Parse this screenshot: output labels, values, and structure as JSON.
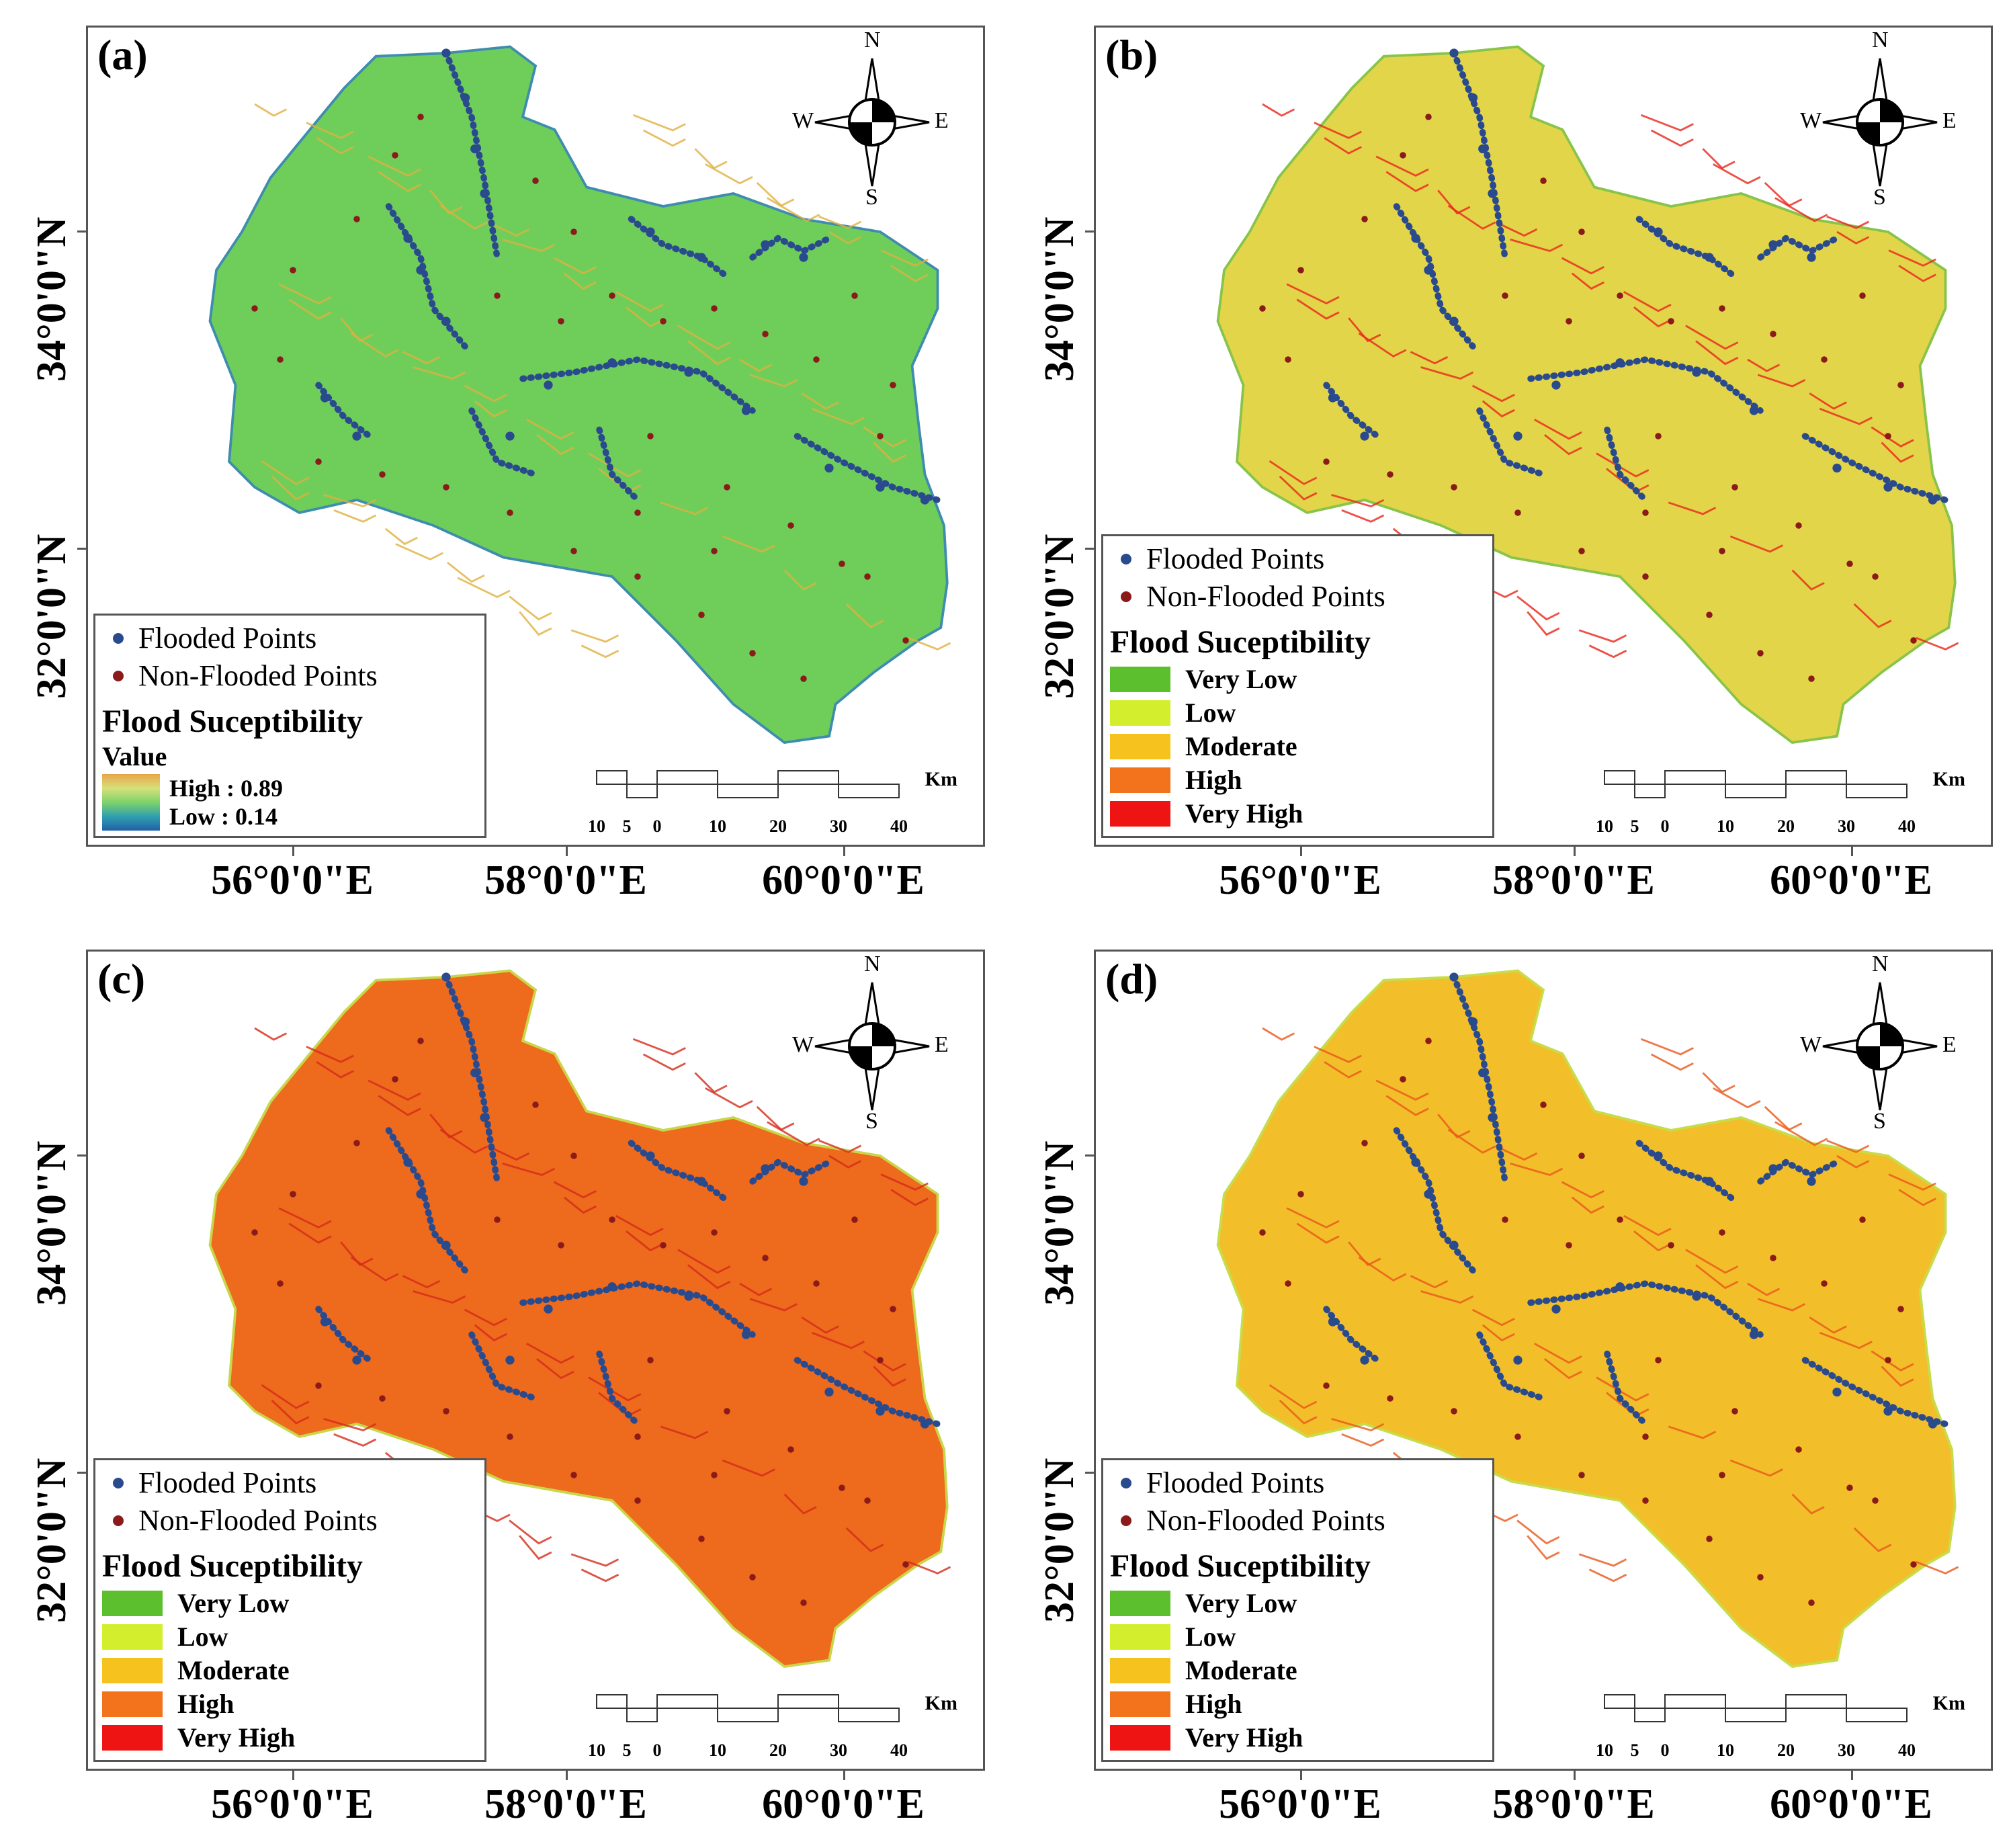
{
  "panels": [
    {
      "label": "(a)",
      "legend": "continuous",
      "fill": "#6fce5a",
      "stroke": "#3e8cae",
      "river": "#e0b040"
    },
    {
      "label": "(b)",
      "legend": "classes",
      "fill": "#e3d54a",
      "stroke": "#88c44a",
      "river": "#e8261a"
    },
    {
      "label": "(c)",
      "legend": "classes",
      "fill": "#ee6a1c",
      "stroke": "#c9d64a",
      "river": "#d42a1a"
    },
    {
      "label": "(d)",
      "legend": "classes",
      "fill": "#f2bf2a",
      "stroke": "#c7dc4a",
      "river": "#e8581a"
    }
  ],
  "compass": {
    "n": "N",
    "s": "S",
    "e": "E",
    "w": "W"
  },
  "legend": {
    "flooded": "Flooded Points",
    "non_flooded": "Non-Flooded Points",
    "title": "Flood Suceptibility",
    "value_label": "Value",
    "high": "High : 0.89",
    "low": "Low : 0.14",
    "classes": [
      {
        "label": "Very Low",
        "color": "#5cc02e"
      },
      {
        "label": "Low",
        "color": "#d2ee2c"
      },
      {
        "label": "Moderate",
        "color": "#f5c21e"
      },
      {
        "label": "High",
        "color": "#f2731c"
      },
      {
        "label": "Very High",
        "color": "#ee1414"
      }
    ],
    "flooded_color": "#2a4a8e",
    "non_flooded_color": "#8b1a1a"
  },
  "scalebar": {
    "ticks": [
      "10",
      "5",
      "0",
      "10",
      "20",
      "30",
      "40"
    ],
    "unit": "Km"
  },
  "axes": {
    "lat_labels": [
      "34°0'0\"N",
      "32°0'0\"N"
    ],
    "lon_labels": [
      "56°0'0\"E",
      "58°0'0\"E",
      "60°0'0\"E"
    ]
  }
}
